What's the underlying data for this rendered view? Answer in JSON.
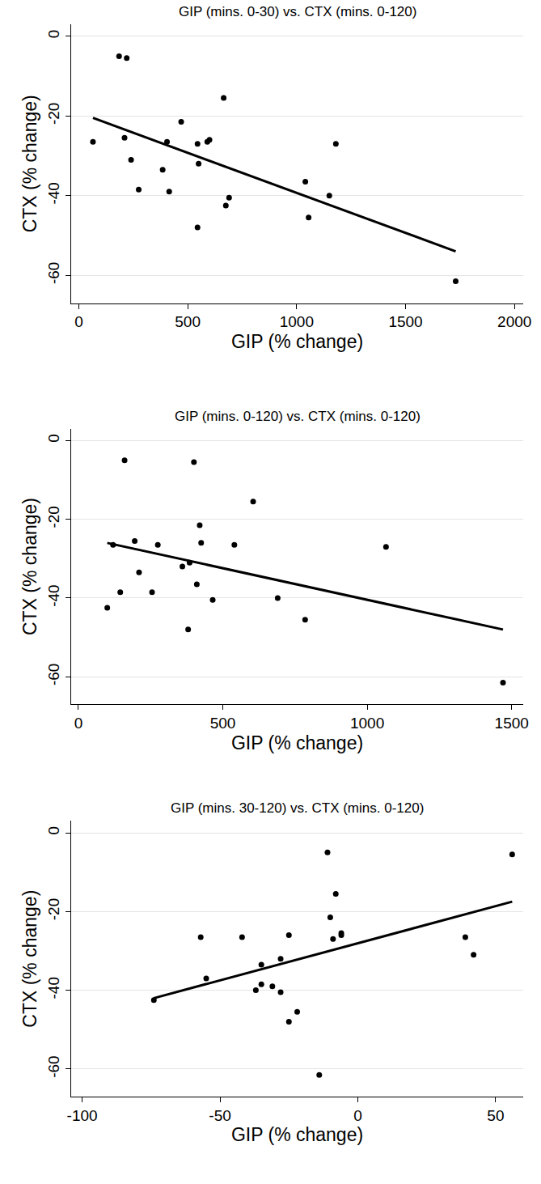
{
  "chart_data": [
    {
      "type": "scatter",
      "title": "GIP (mins. 0-30) vs. CTX (mins. 0-120)",
      "x_label": "GIP (% change)",
      "y_label": "CTX (% change)",
      "x": [
        65,
        185,
        220,
        210,
        240,
        275,
        385,
        405,
        415,
        470,
        545,
        550,
        545,
        590,
        600,
        665,
        675,
        690,
        1040,
        1055,
        1150,
        1180,
        1730
      ],
      "values": [
        -26.5,
        -5,
        -5.5,
        -25.5,
        -31,
        -38.5,
        -33.5,
        -26.5,
        -39,
        -21.5,
        -27,
        -32,
        -48,
        -26.5,
        -26,
        -15.5,
        -42.5,
        -40.5,
        -36.5,
        -45.5,
        -40,
        -27,
        -61.5
      ],
      "trend": {
        "x": [
          65,
          1730
        ],
        "values": [
          -20.5,
          -54
        ]
      },
      "color": "#000000",
      "marker": "circle",
      "grid": true,
      "xlim": [
        -35,
        2040
      ],
      "xticks": [
        0,
        500,
        1000,
        1500,
        2000
      ],
      "ylim": [
        -67,
        3
      ],
      "yticks": [
        0,
        -20,
        -40,
        -60
      ]
    },
    {
      "type": "scatter",
      "title": "GIP (mins. 0-120) vs. CTX (mins. 0-120)",
      "x_label": "GIP (% change)",
      "y_label": "CTX (% change)",
      "x": [
        100,
        120,
        145,
        160,
        195,
        210,
        255,
        275,
        360,
        380,
        385,
        400,
        410,
        420,
        425,
        465,
        540,
        605,
        690,
        785,
        1065,
        1470
      ],
      "values": [
        -42.5,
        -26.5,
        -38.5,
        -5,
        -25.5,
        -33.5,
        -38.5,
        -26.5,
        -32,
        -48,
        -31,
        -5.5,
        -36.5,
        -21.5,
        -26,
        -40.5,
        -26.5,
        -15.5,
        -40,
        -45.5,
        -27,
        -61.5
      ],
      "trend": {
        "x": [
          100,
          1470
        ],
        "values": [
          -26,
          -48
        ]
      },
      "color": "#000000",
      "marker": "circle",
      "grid": true,
      "xlim": [
        -25,
        1540
      ],
      "xticks": [
        0,
        500,
        1000,
        1500
      ],
      "ylim": [
        -67,
        3
      ],
      "yticks": [
        0,
        -20,
        -40,
        -60
      ]
    },
    {
      "type": "scatter",
      "title": "GIP (mins. 30-120) vs. CTX (mins. 0-120)",
      "x_label": "GIP (% change)",
      "y_label": "CTX (% change)",
      "x": [
        -74,
        -57,
        -55,
        -42,
        -35,
        -35,
        -37,
        -31,
        -28,
        -28,
        -25,
        -25,
        -22,
        -14,
        -11,
        -10,
        -9,
        -8,
        -6,
        -6,
        39,
        42,
        56
      ],
      "values": [
        -42.5,
        -26.5,
        -37,
        -26.5,
        -33.5,
        -38.5,
        -40,
        -39,
        -32,
        -40.5,
        -26,
        -48,
        -45.5,
        -61.5,
        -5,
        -21.5,
        -27,
        -15.5,
        -26,
        -25.5,
        -26.5,
        -31,
        -5.5
      ],
      "trend": {
        "x": [
          -74,
          56
        ],
        "values": [
          -42,
          -17.5
        ]
      },
      "color": "#000000",
      "marker": "circle",
      "grid": true,
      "xlim": [
        -104,
        60
      ],
      "xticks": [
        -100,
        -50,
        0,
        50
      ],
      "ylim": [
        -67,
        3
      ],
      "yticks": [
        0,
        -20,
        -40,
        -60
      ]
    }
  ]
}
